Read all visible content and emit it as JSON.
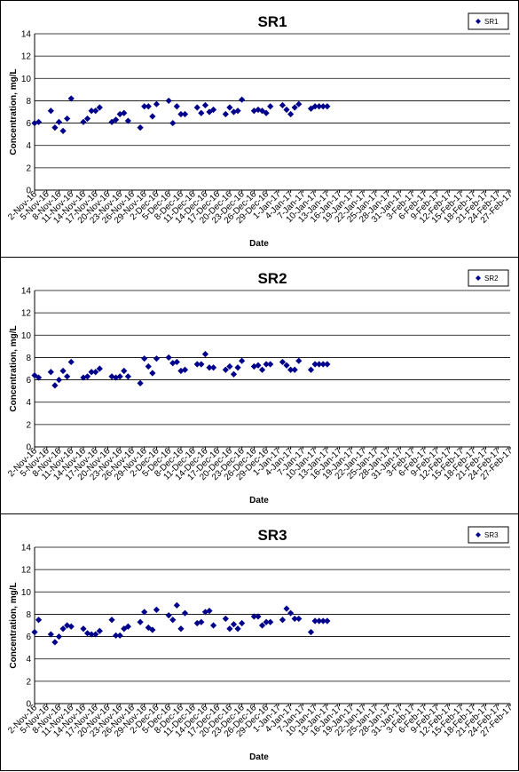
{
  "chart_data": [
    {
      "type": "scatter",
      "title": "SR1",
      "xlabel": "Date",
      "ylabel": "Concentration, mg/L",
      "ylim": [
        0,
        14
      ],
      "yticks": [
        0,
        2,
        4,
        6,
        8,
        10,
        12,
        14
      ],
      "xticks": [
        "2-Nov-16",
        "5-Nov-16",
        "8-Nov-16",
        "11-Nov-16",
        "14-Nov-16",
        "17-Nov-16",
        "20-Nov-16",
        "23-Nov-16",
        "26-Nov-16",
        "29-Nov-16",
        "2-Dec-16",
        "5-Dec-16",
        "8-Dec-16",
        "11-Dec-16",
        "14-Dec-16",
        "17-Dec-16",
        "20-Dec-16",
        "23-Dec-16",
        "26-Dec-16",
        "29-Dec-16",
        "1-Jan-17",
        "4-Jan-17",
        "7-Jan-17",
        "10-Jan-17",
        "13-Jan-17",
        "16-Jan-17",
        "19-Jan-17",
        "22-Jan-17",
        "25-Jan-17",
        "28-Jan-17",
        "31-Jan-17",
        "3-Feb-17",
        "6-Feb-17",
        "9-Feb-17",
        "12-Feb-17",
        "15-Feb-17",
        "18-Feb-17",
        "21-Feb-17",
        "24-Feb-17",
        "27-Feb-17"
      ],
      "grid": true,
      "legend": "top-right",
      "marker_color": "#00008B",
      "series": [
        {
          "name": "SR1",
          "x": [
            "2-Nov-16",
            "3-Nov-16",
            "6-Nov-16",
            "7-Nov-16",
            "8-Nov-16",
            "9-Nov-16",
            "10-Nov-16",
            "11-Nov-16",
            "14-Nov-16",
            "15-Nov-16",
            "16-Nov-16",
            "17-Nov-16",
            "18-Nov-16",
            "21-Nov-16",
            "22-Nov-16",
            "23-Nov-16",
            "24-Nov-16",
            "25-Nov-16",
            "28-Nov-16",
            "29-Nov-16",
            "30-Nov-16",
            "1-Dec-16",
            "2-Dec-16",
            "5-Dec-16",
            "6-Dec-16",
            "7-Dec-16",
            "8-Dec-16",
            "9-Dec-16",
            "12-Dec-16",
            "13-Dec-16",
            "14-Dec-16",
            "15-Dec-16",
            "16-Dec-16",
            "19-Dec-16",
            "20-Dec-16",
            "21-Dec-16",
            "22-Dec-16",
            "23-Dec-16",
            "26-Dec-16",
            "27-Dec-16",
            "28-Dec-16",
            "29-Dec-16",
            "30-Dec-16",
            "2-Jan-17",
            "3-Jan-17",
            "4-Jan-17",
            "5-Jan-17",
            "6-Jan-17",
            "9-Jan-17",
            "10-Jan-17",
            "11-Jan-17",
            "12-Jan-17",
            "13-Jan-17"
          ],
          "y": [
            6.0,
            6.1,
            7.1,
            5.6,
            6.1,
            5.3,
            6.4,
            8.2,
            6.1,
            6.4,
            7.1,
            7.1,
            7.4,
            6.1,
            6.3,
            6.8,
            6.9,
            6.2,
            5.6,
            7.5,
            7.5,
            6.6,
            7.7,
            8.0,
            6.0,
            7.5,
            6.8,
            6.8,
            7.4,
            6.9,
            7.6,
            7.0,
            7.2,
            6.8,
            7.4,
            7.0,
            7.1,
            8.1,
            7.1,
            7.2,
            7.1,
            6.9,
            7.5,
            7.6,
            7.2,
            6.8,
            7.4,
            7.7,
            7.3,
            7.5,
            7.5,
            7.5,
            7.5
          ]
        }
      ]
    },
    {
      "type": "scatter",
      "title": "SR2",
      "xlabel": "Date",
      "ylabel": "Concentration, mg/L",
      "ylim": [
        0,
        14
      ],
      "yticks": [
        0,
        2,
        4,
        6,
        8,
        10,
        12,
        14
      ],
      "xticks": [
        "2-Nov-16",
        "5-Nov-16",
        "8-Nov-16",
        "11-Nov-16",
        "14-Nov-16",
        "17-Nov-16",
        "20-Nov-16",
        "23-Nov-16",
        "26-Nov-16",
        "29-Nov-16",
        "2-Dec-16",
        "5-Dec-16",
        "8-Dec-16",
        "11-Dec-16",
        "14-Dec-16",
        "17-Dec-16",
        "20-Dec-16",
        "23-Dec-16",
        "26-Dec-16",
        "29-Dec-16",
        "1-Jan-17",
        "4-Jan-17",
        "7-Jan-17",
        "10-Jan-17",
        "13-Jan-17",
        "16-Jan-17",
        "19-Jan-17",
        "22-Jan-17",
        "25-Jan-17",
        "28-Jan-17",
        "31-Jan-17",
        "3-Feb-17",
        "6-Feb-17",
        "9-Feb-17",
        "12-Feb-17",
        "15-Feb-17",
        "18-Feb-17",
        "21-Feb-17",
        "24-Feb-17",
        "27-Feb-17"
      ],
      "grid": true,
      "legend": "top-right",
      "marker_color": "#00008B",
      "series": [
        {
          "name": "SR2",
          "x": [
            "2-Nov-16",
            "3-Nov-16",
            "6-Nov-16",
            "7-Nov-16",
            "8-Nov-16",
            "9-Nov-16",
            "10-Nov-16",
            "11-Nov-16",
            "14-Nov-16",
            "15-Nov-16",
            "16-Nov-16",
            "17-Nov-16",
            "18-Nov-16",
            "21-Nov-16",
            "22-Nov-16",
            "23-Nov-16",
            "24-Nov-16",
            "25-Nov-16",
            "28-Nov-16",
            "29-Nov-16",
            "30-Nov-16",
            "1-Dec-16",
            "2-Dec-16",
            "5-Dec-16",
            "6-Dec-16",
            "7-Dec-16",
            "8-Dec-16",
            "9-Dec-16",
            "12-Dec-16",
            "13-Dec-16",
            "14-Dec-16",
            "15-Dec-16",
            "16-Dec-16",
            "19-Dec-16",
            "20-Dec-16",
            "21-Dec-16",
            "22-Dec-16",
            "23-Dec-16",
            "26-Dec-16",
            "27-Dec-16",
            "28-Dec-16",
            "29-Dec-16",
            "30-Dec-16",
            "2-Jan-17",
            "3-Jan-17",
            "4-Jan-17",
            "5-Jan-17",
            "6-Jan-17",
            "9-Jan-17",
            "10-Jan-17",
            "11-Jan-17",
            "12-Jan-17",
            "13-Jan-17"
          ],
          "y": [
            6.4,
            6.2,
            6.7,
            5.5,
            6.0,
            6.8,
            6.3,
            7.6,
            6.2,
            6.3,
            6.7,
            6.7,
            7.0,
            6.3,
            6.2,
            6.3,
            6.8,
            6.3,
            5.7,
            7.9,
            7.2,
            6.6,
            7.9,
            8.0,
            7.5,
            7.6,
            6.8,
            6.9,
            7.4,
            7.4,
            8.3,
            7.1,
            7.1,
            6.9,
            7.2,
            6.5,
            7.1,
            7.7,
            7.2,
            7.3,
            6.9,
            7.4,
            7.4,
            7.6,
            7.3,
            6.9,
            6.9,
            7.7,
            6.9,
            7.4,
            7.4,
            7.4,
            7.4
          ]
        }
      ]
    },
    {
      "type": "scatter",
      "title": "SR3",
      "xlabel": "Date",
      "ylabel": "Concentration, mg/L",
      "ylim": [
        0,
        14
      ],
      "yticks": [
        0,
        2,
        4,
        6,
        8,
        10,
        12,
        14
      ],
      "xticks": [
        "2-Nov-16",
        "5-Nov-16",
        "8-Nov-16",
        "11-Nov-16",
        "14-Nov-16",
        "17-Nov-16",
        "20-Nov-16",
        "23-Nov-16",
        "26-Nov-16",
        "29-Nov-16",
        "2-Dec-16",
        "5-Dec-16",
        "8-Dec-16",
        "11-Dec-16",
        "14-Dec-16",
        "17-Dec-16",
        "20-Dec-16",
        "23-Dec-16",
        "26-Dec-16",
        "29-Dec-16",
        "1-Jan-17",
        "4-Jan-17",
        "7-Jan-17",
        "10-Jan-17",
        "13-Jan-17",
        "16-Jan-17",
        "19-Jan-17",
        "22-Jan-17",
        "25-Jan-17",
        "28-Jan-17",
        "31-Jan-17",
        "3-Feb-17",
        "6-Feb-17",
        "9-Feb-17",
        "12-Feb-17",
        "15-Feb-17",
        "18-Feb-17",
        "21-Feb-17",
        "24-Feb-17",
        "27-Feb-17"
      ],
      "grid": true,
      "legend": "top-right",
      "marker_color": "#00008B",
      "series": [
        {
          "name": "SR3",
          "x": [
            "2-Nov-16",
            "3-Nov-16",
            "6-Nov-16",
            "7-Nov-16",
            "8-Nov-16",
            "9-Nov-16",
            "10-Nov-16",
            "11-Nov-16",
            "14-Nov-16",
            "15-Nov-16",
            "16-Nov-16",
            "17-Nov-16",
            "18-Nov-16",
            "21-Nov-16",
            "22-Nov-16",
            "23-Nov-16",
            "24-Nov-16",
            "25-Nov-16",
            "28-Nov-16",
            "29-Nov-16",
            "30-Nov-16",
            "1-Dec-16",
            "2-Dec-16",
            "5-Dec-16",
            "6-Dec-16",
            "7-Dec-16",
            "8-Dec-16",
            "9-Dec-16",
            "12-Dec-16",
            "13-Dec-16",
            "14-Dec-16",
            "15-Dec-16",
            "16-Dec-16",
            "19-Dec-16",
            "20-Dec-16",
            "21-Dec-16",
            "22-Dec-16",
            "23-Dec-16",
            "26-Dec-16",
            "27-Dec-16",
            "28-Dec-16",
            "29-Dec-16",
            "30-Dec-16",
            "2-Jan-17",
            "3-Jan-17",
            "4-Jan-17",
            "5-Jan-17",
            "6-Jan-17",
            "9-Jan-17",
            "10-Jan-17",
            "11-Jan-17",
            "12-Jan-17",
            "13-Jan-17"
          ],
          "y": [
            6.4,
            7.5,
            6.2,
            5.5,
            6.0,
            6.7,
            7.0,
            6.9,
            6.7,
            6.3,
            6.2,
            6.2,
            6.5,
            7.5,
            6.1,
            6.1,
            6.7,
            6.9,
            7.3,
            8.2,
            6.8,
            6.6,
            8.4,
            7.9,
            7.5,
            8.8,
            6.7,
            8.1,
            7.2,
            7.3,
            8.2,
            8.3,
            7.0,
            7.6,
            6.7,
            7.1,
            6.7,
            7.2,
            7.8,
            7.8,
            7.0,
            7.3,
            7.3,
            7.5,
            8.5,
            8.1,
            7.6,
            7.6,
            6.4,
            7.4,
            7.4,
            7.4,
            7.4
          ]
        }
      ]
    }
  ]
}
